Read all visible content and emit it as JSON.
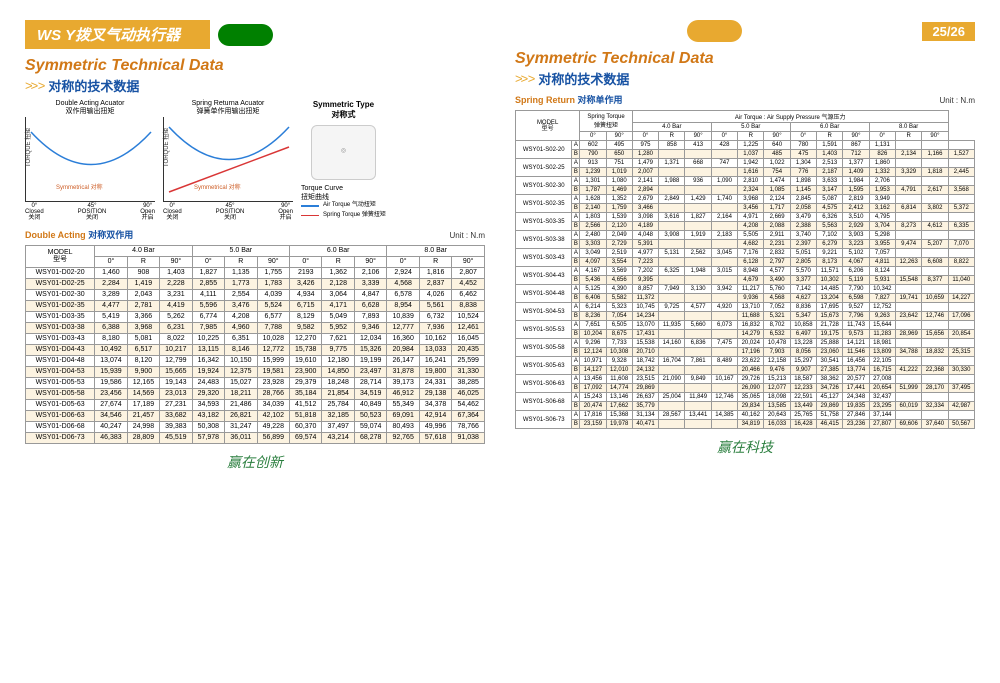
{
  "header": {
    "title_prefix": "WS",
    "title": "Y拨叉气动执行器",
    "page": "25/26"
  },
  "section": {
    "title": "Symmetric Technical Data",
    "sub_cn": "对称的技术数据"
  },
  "chart1": {
    "title_en": "Double Acting Acuator",
    "title_cn": "双作用输出扭矩",
    "ylabel": "TORQUE 扭矩",
    "sym": "Symmetrical 对称",
    "color": "#2b7ed8"
  },
  "chart2": {
    "title_en": "Spring Returna Acuator",
    "title_cn": "弹簧单作用输出扭矩",
    "ylabel": "TORQUE 扭矩",
    "sym": "Symmetrical 对称"
  },
  "xlabels": [
    [
      "0°",
      "Closed",
      "关闭"
    ],
    [
      "45°",
      "POSITION",
      "关闭"
    ],
    [
      "90°",
      "Open",
      "开启"
    ]
  ],
  "legend": {
    "sym_title": "Symmetric Type",
    "sym_cn": "对称式",
    "curve_en": "Torque Curve",
    "curve_cn": "扭矩曲线",
    "air": "Air Torque 气动扭矩",
    "spring": "Spring Torque 弹簧扭矩",
    "air_color": "#2b7ed8",
    "spring_color": "#d93636"
  },
  "da": {
    "label_en": "Double Acting",
    "label_cn": "对称双作用",
    "unit": "Unit : N.m",
    "bars": [
      "4.0 Bar",
      "5.0 Bar",
      "6.0 Bar",
      "8.0 Bar"
    ],
    "subcols": [
      "0°",
      "R",
      "90°"
    ],
    "model_h": [
      "MODEL",
      "型号"
    ],
    "rows": [
      [
        "WSY01-D02-20",
        "1,460",
        "908",
        "1,403",
        "1,827",
        "1,135",
        "1,755",
        "2193",
        "1,362",
        "2,106",
        "2,924",
        "1,816",
        "2,807"
      ],
      [
        "WSY01-D02-25",
        "2,284",
        "1,419",
        "2,228",
        "2,855",
        "1,773",
        "1,783",
        "3,426",
        "2,128",
        "3,339",
        "4,568",
        "2,837",
        "4,452"
      ],
      [
        "WSY01-D02-30",
        "3,289",
        "2,043",
        "3,231",
        "4,111",
        "2,554",
        "4,039",
        "4,934",
        "3,064",
        "4,847",
        "6,578",
        "4,026",
        "6,462"
      ],
      [
        "WSY01-D02-35",
        "4,477",
        "2,781",
        "4,419",
        "5,596",
        "3,476",
        "5,524",
        "6,715",
        "4,171",
        "6,628",
        "8,954",
        "5,561",
        "8,838"
      ],
      [
        "WSY01-D03-35",
        "5,419",
        "3,366",
        "5,262",
        "6,774",
        "4,208",
        "6,577",
        "8,129",
        "5,049",
        "7,893",
        "10,839",
        "6,732",
        "10,524"
      ],
      [
        "WSY01-D03-38",
        "6,388",
        "3,968",
        "6,231",
        "7,985",
        "4,960",
        "7,788",
        "9,582",
        "5,952",
        "9,346",
        "12,777",
        "7,936",
        "12,461"
      ],
      [
        "WSY01-D03-43",
        "8,180",
        "5,081",
        "8,022",
        "10,225",
        "6,351",
        "10,028",
        "12,270",
        "7,621",
        "12,034",
        "16,360",
        "10,162",
        "16,045"
      ],
      [
        "WSY01-D04-43",
        "10,492",
        "6,517",
        "10,217",
        "13,115",
        "8,146",
        "12,772",
        "15,738",
        "9,775",
        "15,326",
        "20,984",
        "13,033",
        "20,435"
      ],
      [
        "WSY01-D04-48",
        "13,074",
        "8,120",
        "12,799",
        "16,342",
        "10,150",
        "15,999",
        "19,610",
        "12,180",
        "19,199",
        "26,147",
        "16,241",
        "25,599"
      ],
      [
        "WSY01-D04-53",
        "15,939",
        "9,900",
        "15,665",
        "19,924",
        "12,375",
        "19,581",
        "23,900",
        "14,850",
        "23,497",
        "31,878",
        "19,800",
        "31,330"
      ],
      [
        "WSY01-D05-53",
        "19,586",
        "12,165",
        "19,143",
        "24,483",
        "15,027",
        "23,928",
        "29,379",
        "18,248",
        "28,714",
        "39,173",
        "24,331",
        "38,285"
      ],
      [
        "WSY01-D05-58",
        "23,456",
        "14,569",
        "23,013",
        "29,320",
        "18,211",
        "28,766",
        "35,184",
        "21,854",
        "34,519",
        "46,912",
        "29,138",
        "46,025"
      ],
      [
        "WSY01-D05-63",
        "27,674",
        "17,189",
        "27,231",
        "34,593",
        "21,486",
        "34,039",
        "41,512",
        "25,784",
        "40,849",
        "55,349",
        "34,378",
        "54,462"
      ],
      [
        "WSY01-D06-63",
        "34,546",
        "21,457",
        "33,682",
        "43,182",
        "26,821",
        "42,102",
        "51,818",
        "32,185",
        "50,523",
        "69,091",
        "42,914",
        "67,364"
      ],
      [
        "WSY01-D06-68",
        "40,247",
        "24,998",
        "39,383",
        "50,308",
        "31,247",
        "49,228",
        "60,370",
        "37,497",
        "59,074",
        "80,493",
        "49,996",
        "78,766"
      ],
      [
        "WSY01-D06-73",
        "46,383",
        "28,809",
        "45,519",
        "57,978",
        "36,011",
        "56,899",
        "69,574",
        "43,214",
        "68,278",
        "92,765",
        "57,618",
        "91,038"
      ]
    ]
  },
  "sr": {
    "label_en": "Spring Return",
    "label_cn": "对称单作用",
    "unit": "Unit : N.m",
    "top_header": [
      "Air Torque : Air Supply Pressure 气源压力"
    ],
    "spring_h": [
      "Spring Torque",
      "弹簧扭矩"
    ],
    "bars": [
      "4.0 Bar",
      "5.0 Bar",
      "6.0 Bar",
      "8.0 Bar"
    ],
    "subcols": [
      "0°",
      "R",
      "90°"
    ],
    "spring_sub": [
      "0°",
      "90°"
    ],
    "model_h": [
      "MODEL",
      "型号"
    ],
    "models": [
      "WSY01-S02-20",
      "WSY01-S02-25",
      "WSY01-S02-30",
      "WSY01-S02-35",
      "WSY01-S03-35",
      "WSY01-S03-38",
      "WSY01-S03-43",
      "WSY01-S04-43",
      "WSY01-S04-48",
      "WSY01-S04-53",
      "WSY01-S05-53",
      "WSY01-S05-58",
      "WSY01-S05-63",
      "WSY01-S06-63",
      "WSY01-S06-68",
      "WSY01-S06-73"
    ],
    "rows": [
      [
        "A",
        "602",
        "495",
        "975",
        "858",
        "413",
        "428",
        "1,225",
        "640",
        "780",
        "1,591",
        "867",
        "1,131",
        "",
        "",
        ""
      ],
      [
        "B",
        "790",
        "650",
        "1,280",
        "",
        "",
        "",
        "1,037",
        "485",
        "475",
        "1,403",
        "712",
        "826",
        "2,134",
        "1,166",
        "1,527"
      ],
      [
        "A",
        "913",
        "751",
        "1,479",
        "1,371",
        "668",
        "747",
        "1,942",
        "1,022",
        "1,304",
        "2,513",
        "1,377",
        "1,860",
        "",
        "",
        ""
      ],
      [
        "B",
        "1,239",
        "1,019",
        "2,007",
        "",
        "",
        "",
        "1,616",
        "754",
        "776",
        "2,187",
        "1,409",
        "1,332",
        "3,329",
        "1,818",
        "2,445"
      ],
      [
        "A",
        "1,301",
        "1,080",
        "2,141",
        "1,988",
        "936",
        "1,090",
        "2,810",
        "1,474",
        "1,898",
        "3,633",
        "1,984",
        "2,706",
        "",
        "",
        ""
      ],
      [
        "B",
        "1,787",
        "1,469",
        "2,894",
        "",
        "",
        "",
        "2,324",
        "1,085",
        "1,145",
        "3,147",
        "1,595",
        "1,953",
        "4,791",
        "2,617",
        "3,568"
      ],
      [
        "A",
        "1,628",
        "1,352",
        "2,679",
        "2,849",
        "1,429",
        "1,740",
        "3,968",
        "2,124",
        "2,845",
        "5,087",
        "2,819",
        "3,949",
        "",
        "",
        ""
      ],
      [
        "B",
        "2,140",
        "1,759",
        "3,466",
        "",
        "",
        "",
        "3,456",
        "1,717",
        "2,058",
        "4,575",
        "2,412",
        "3,162",
        "6,814",
        "3,802",
        "5,372"
      ],
      [
        "A",
        "1,803",
        "1,539",
        "3,098",
        "3,616",
        "1,827",
        "2,164",
        "4,971",
        "2,669",
        "3,479",
        "6,326",
        "3,510",
        "4,795",
        "",
        "",
        ""
      ],
      [
        "B",
        "2,566",
        "2,120",
        "4,189",
        "",
        "",
        "",
        "4,208",
        "2,088",
        "2,388",
        "5,563",
        "2,929",
        "3,704",
        "8,273",
        "4,612",
        "6,335"
      ],
      [
        "A",
        "2,480",
        "2,049",
        "4,048",
        "3,908",
        "1,919",
        "2,183",
        "5,505",
        "2,911",
        "3,740",
        "7,102",
        "3,903",
        "5,298",
        "",
        "",
        ""
      ],
      [
        "B",
        "3,303",
        "2,729",
        "5,391",
        "",
        "",
        "",
        "4,682",
        "2,231",
        "2,397",
        "6,279",
        "3,223",
        "3,955",
        "9,474",
        "5,207",
        "7,070"
      ],
      [
        "A",
        "3,049",
        "2,519",
        "4,977",
        "5,131",
        "2,562",
        "3,045",
        "7,176",
        "2,832",
        "5,051",
        "9,221",
        "5,102",
        "7,057",
        "",
        "",
        ""
      ],
      [
        "B",
        "4,097",
        "3,554",
        "7,223",
        "",
        "",
        "",
        "6,128",
        "2,797",
        "2,805",
        "8,173",
        "4,067",
        "4,811",
        "12,263",
        "6,608",
        "8,822"
      ],
      [
        "A",
        "4,167",
        "3,569",
        "7,202",
        "6,325",
        "1,948",
        "3,015",
        "8,948",
        "4,577",
        "5,570",
        "11,571",
        "6,206",
        "8,124",
        "",
        "",
        ""
      ],
      [
        "B",
        "5,436",
        "4,656",
        "9,395",
        "",
        "",
        "",
        "4,679",
        "3,490",
        "3,377",
        "10,302",
        "5,119",
        "5,931",
        "15,548",
        "8,377",
        "11,040"
      ],
      [
        "A",
        "5,125",
        "4,390",
        "8,857",
        "7,949",
        "3,130",
        "3,942",
        "11,217",
        "5,760",
        "7,142",
        "14,485",
        "7,790",
        "10,342",
        "",
        "",
        ""
      ],
      [
        "B",
        "6,406",
        "5,582",
        "11,372",
        "",
        "",
        "",
        "9,936",
        "4,568",
        "4,627",
        "13,204",
        "6,598",
        "7,827",
        "19,741",
        "10,659",
        "14,227"
      ],
      [
        "A",
        "6,214",
        "5,323",
        "10,745",
        "9,725",
        "4,577",
        "4,920",
        "13,710",
        "7,052",
        "8,836",
        "17,695",
        "9,527",
        "12,752",
        "",
        "",
        ""
      ],
      [
        "B",
        "8,236",
        "7,054",
        "14,234",
        "",
        "",
        "",
        "11,688",
        "5,321",
        "5,347",
        "15,673",
        "7,796",
        "9,263",
        "23,642",
        "12,746",
        "17,096"
      ],
      [
        "A",
        "7,651",
        "6,505",
        "13,070",
        "11,935",
        "5,660",
        "6,073",
        "16,832",
        "8,702",
        "10,858",
        "21,728",
        "11,743",
        "15,644",
        "",
        "",
        ""
      ],
      [
        "B",
        "10,204",
        "8,675",
        "17,431",
        "",
        "",
        "",
        "14,279",
        "6,532",
        "6,497",
        "19,175",
        "9,573",
        "11,283",
        "28,969",
        "15,656",
        "20,854"
      ],
      [
        "A",
        "9,296",
        "7,733",
        "15,538",
        "14,160",
        "6,836",
        "7,475",
        "20,024",
        "10,478",
        "13,228",
        "25,888",
        "14,121",
        "18,981",
        "",
        "",
        ""
      ],
      [
        "B",
        "12,124",
        "10,308",
        "20,710",
        "",
        "",
        "",
        "17,196",
        "7,903",
        "8,056",
        "23,060",
        "11,546",
        "13,809",
        "34,788",
        "18,832",
        "25,315"
      ],
      [
        "A",
        "10,971",
        "9,328",
        "18,742",
        "16,704",
        "7,861",
        "8,489",
        "23,622",
        "12,158",
        "15,297",
        "30,541",
        "16,456",
        "22,105",
        "",
        "",
        ""
      ],
      [
        "B",
        "14,127",
        "12,010",
        "24,132",
        "",
        "",
        "",
        "20,466",
        "9,476",
        "9,907",
        "27,385",
        "13,774",
        "16,715",
        "41,222",
        "22,368",
        "30,330"
      ],
      [
        "A",
        "13,456",
        "11,608",
        "23,515",
        "21,090",
        "9,849",
        "10,167",
        "29,726",
        "15,213",
        "18,587",
        "38,362",
        "20,577",
        "27,008",
        "",
        "",
        ""
      ],
      [
        "B",
        "17,092",
        "14,774",
        "29,869",
        "",
        "",
        "",
        "26,090",
        "12,077",
        "12,233",
        "34,726",
        "17,441",
        "20,654",
        "51,999",
        "28,170",
        "37,495"
      ],
      [
        "A",
        "15,243",
        "13,146",
        "26,637",
        "25,004",
        "11,849",
        "12,746",
        "35,065",
        "18,098",
        "22,591",
        "45,127",
        "24,348",
        "32,437",
        "",
        "",
        ""
      ],
      [
        "B",
        "20,474",
        "17,662",
        "35,779",
        "",
        "",
        "",
        "29,834",
        "13,585",
        "13,449",
        "29,869",
        "19,835",
        "23,295",
        "60,019",
        "32,334",
        "42,987"
      ],
      [
        "A",
        "17,816",
        "15,368",
        "31,134",
        "28,567",
        "13,441",
        "14,385",
        "40,162",
        "20,643",
        "25,765",
        "51,758",
        "27,846",
        "37,144",
        "",
        "",
        ""
      ],
      [
        "B",
        "23,159",
        "19,978",
        "40,471",
        "",
        "",
        "",
        "34,819",
        "16,033",
        "16,428",
        "46,415",
        "23,236",
        "27,807",
        "69,606",
        "37,640",
        "50,567"
      ]
    ]
  },
  "footer": {
    "left": "赢在创新",
    "right": "赢在科技"
  }
}
